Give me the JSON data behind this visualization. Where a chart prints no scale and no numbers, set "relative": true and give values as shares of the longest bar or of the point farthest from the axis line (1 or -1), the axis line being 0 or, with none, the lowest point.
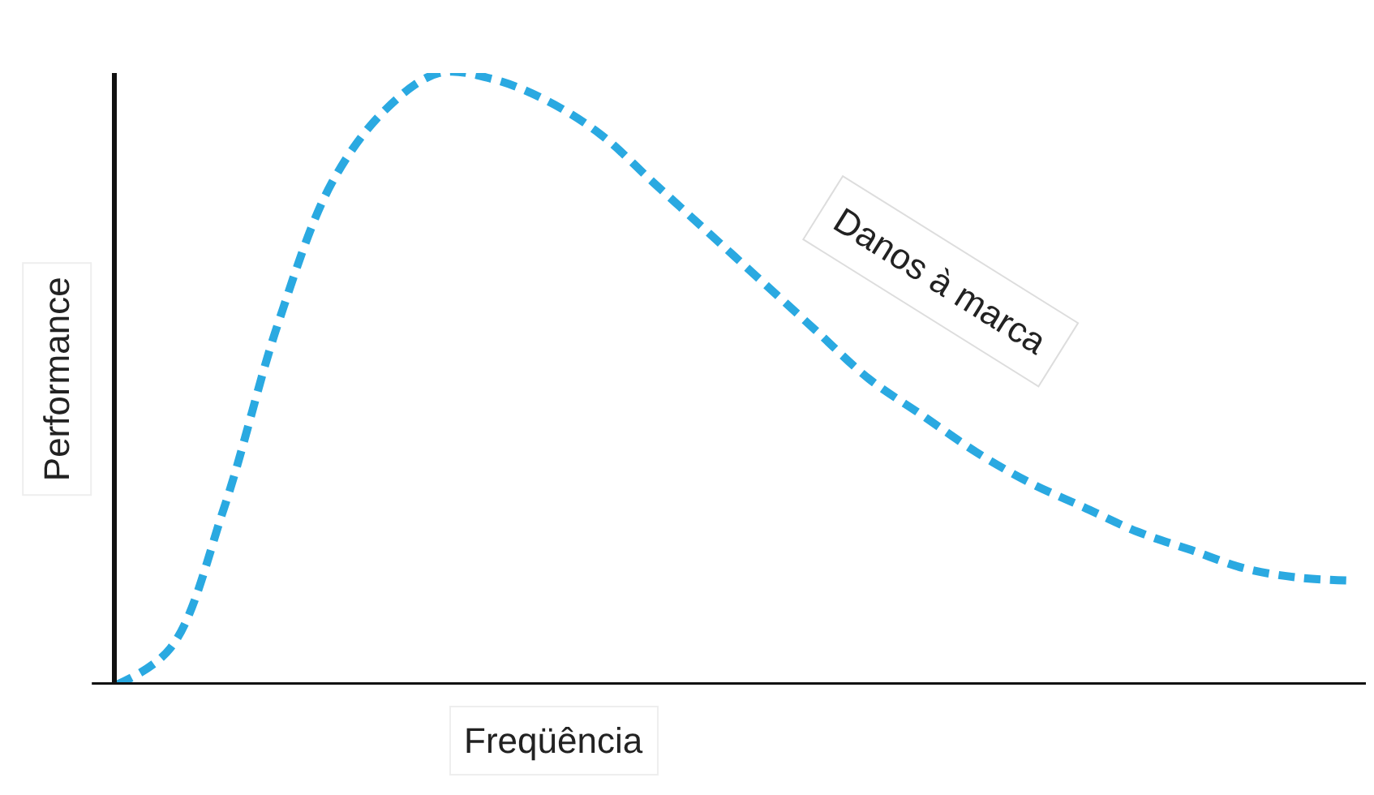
{
  "chart_data": {
    "type": "line",
    "relative": true,
    "xlabel": "Freqüência",
    "ylabel": "Performance",
    "categories": [
      null,
      null,
      null,
      null,
      null,
      null,
      null,
      null,
      null,
      null,
      null,
      null,
      null,
      null,
      null,
      null,
      null,
      null,
      null,
      null,
      null,
      null,
      null,
      null
    ],
    "series": [
      {
        "color": "#2aa9e1",
        "values": [
          0,
          0.06,
          0.29,
          0.59,
          0.82,
          0.94,
          1.0,
          0.99,
          0.955,
          0.9,
          0.82,
          0.74,
          0.66,
          0.58,
          0.5,
          0.44,
          0.38,
          0.33,
          0.29,
          0.25,
          0.22,
          0.19,
          0.175,
          0.17
        ]
      }
    ],
    "annotations": [
      "Danos à marca"
    ],
    "line_style": "dashed",
    "marker": "none"
  }
}
